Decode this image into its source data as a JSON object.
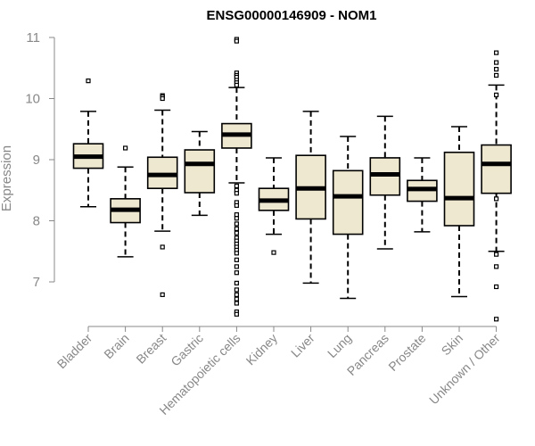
{
  "chart_data": {
    "type": "boxplot",
    "title": "ENSG00000146909 - NOM1",
    "xlabel": "",
    "ylabel": "Expression",
    "ylim": [
      6.4,
      11.05
    ],
    "yticks": [
      7,
      8,
      9,
      10,
      11
    ],
    "colors": {
      "box_fill": "#efe8d0",
      "stroke": "#000000",
      "axis": "#888888"
    },
    "categories": [
      "Bladder",
      "Brain",
      "Breast",
      "Gastric",
      "Hematopoietic cells",
      "Kidney",
      "Liver",
      "Lung",
      "Pancreas",
      "Prostate",
      "Skin",
      "Unknown / Other"
    ],
    "boxes": [
      {
        "name": "Bladder",
        "min": 8.23,
        "q1": 8.86,
        "median": 9.05,
        "q3": 9.26,
        "max": 9.79,
        "outliers": [
          10.29
        ]
      },
      {
        "name": "Brain",
        "min": 7.41,
        "q1": 7.97,
        "median": 8.18,
        "q3": 8.36,
        "max": 8.88,
        "outliers": [
          9.19
        ]
      },
      {
        "name": "Breast",
        "min": 7.83,
        "q1": 8.53,
        "median": 8.75,
        "q3": 9.04,
        "max": 9.81,
        "outliers": [
          10.05,
          10.03,
          10.0,
          7.57,
          6.79
        ]
      },
      {
        "name": "Gastric",
        "min": 8.09,
        "q1": 8.46,
        "median": 8.93,
        "q3": 9.16,
        "max": 9.46,
        "outliers": []
      },
      {
        "name": "Hematopoietic cells",
        "min": 8.62,
        "q1": 9.19,
        "median": 9.41,
        "q3": 9.59,
        "max": 10.18,
        "outliers": [
          10.97,
          10.94,
          10.42,
          10.38,
          10.35,
          10.3,
          10.26,
          10.22,
          8.57,
          8.5,
          8.45,
          8.3,
          8.25,
          8.1,
          8.04,
          7.95,
          7.87,
          7.8,
          7.72,
          7.67,
          7.62,
          7.57,
          7.52,
          7.47,
          7.36,
          7.25,
          7.15,
          6.98,
          6.87,
          6.79,
          6.72,
          6.65,
          6.51,
          6.47
        ]
      },
      {
        "name": "Kidney",
        "min": 7.78,
        "q1": 8.17,
        "median": 8.33,
        "q3": 8.53,
        "max": 9.03,
        "outliers": [
          7.48
        ]
      },
      {
        "name": "Liver",
        "min": 6.98,
        "q1": 8.03,
        "median": 8.53,
        "q3": 9.07,
        "max": 9.79,
        "outliers": []
      },
      {
        "name": "Lung",
        "min": 6.73,
        "q1": 7.78,
        "median": 8.4,
        "q3": 8.82,
        "max": 9.38,
        "outliers": []
      },
      {
        "name": "Pancreas",
        "min": 7.54,
        "q1": 8.42,
        "median": 8.76,
        "q3": 9.03,
        "max": 9.71,
        "outliers": []
      },
      {
        "name": "Prostate",
        "min": 7.82,
        "q1": 8.32,
        "median": 8.52,
        "q3": 8.66,
        "max": 9.03,
        "outliers": []
      },
      {
        "name": "Skin",
        "min": 6.76,
        "q1": 7.92,
        "median": 8.37,
        "q3": 9.12,
        "max": 9.54,
        "outliers": []
      },
      {
        "name": "Unknown / Other",
        "min": 7.5,
        "q1": 8.45,
        "median": 8.93,
        "q3": 9.24,
        "max": 10.22,
        "outliers": [
          10.75,
          10.59,
          10.48,
          10.38,
          10.06,
          8.36,
          7.45,
          7.25,
          6.92,
          6.39
        ]
      }
    ]
  }
}
